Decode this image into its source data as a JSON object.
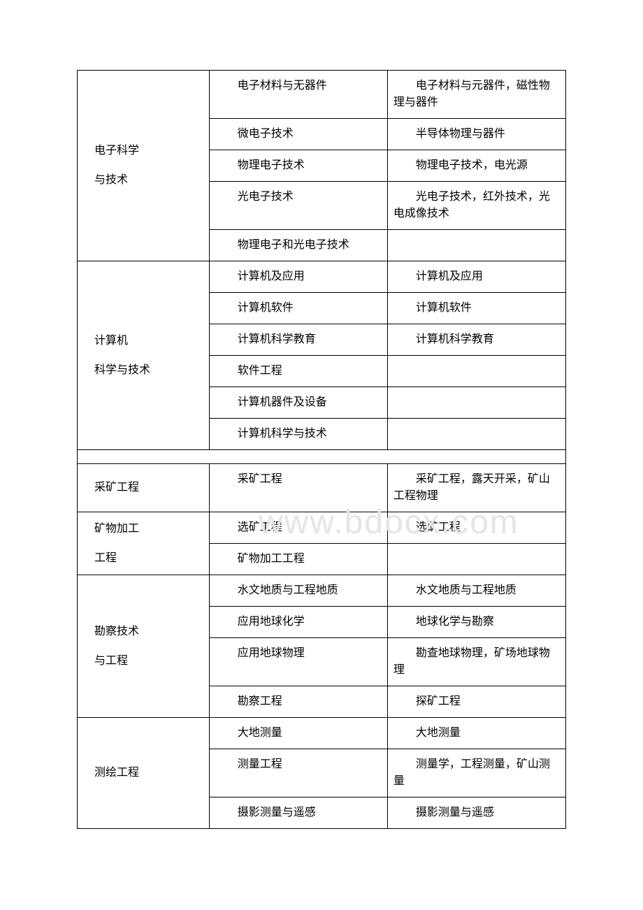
{
  "watermark": "www.bdocx.com",
  "table": {
    "border_color": "#000000",
    "background_color": "#ffffff",
    "text_color": "#000000",
    "font_size": 16,
    "watermark_color": "#e5e5e5",
    "column_widths": [
      "27%",
      "36.5%",
      "36.5%"
    ],
    "sections": [
      {
        "category_lines": [
          "电子科学",
          "与技术"
        ],
        "rows": [
          {
            "col2": "电子材料与无器件",
            "col3": "　　电子材料与元器件，磁性物理与器件"
          },
          {
            "col2": "微电子技术",
            "col3": "半导体物理与器件"
          },
          {
            "col2": "物理电子技术",
            "col3": "　　物理电子技术，电光源"
          },
          {
            "col2": "光电子技术",
            "col3": "　　光电子技术，红外技术，光电成像技术"
          },
          {
            "col2": "　　物理电子和光电子技术",
            "col3": ""
          }
        ]
      },
      {
        "category_lines": [
          "计算机",
          "科学与技术"
        ],
        "rows": [
          {
            "col2": "计算机及应用",
            "col3": "计算机及应用"
          },
          {
            "col2": "计算机软件",
            "col3": "计算机软件"
          },
          {
            "col2": "计算机科学教育",
            "col3": "计算机科学教育"
          },
          {
            "col2": "软件工程",
            "col3": ""
          },
          {
            "col2": "计算机器件及设备",
            "col3": ""
          },
          {
            "col2": "计算机科学与技术",
            "col3": ""
          }
        ]
      },
      {
        "spacer": true
      },
      {
        "category_lines": [
          "采矿工程"
        ],
        "rows": [
          {
            "col2": "采矿工程",
            "col3": "　　采矿工程，露天开采，矿山工程物理"
          }
        ]
      },
      {
        "category_lines": [
          "矿物加工",
          "工程"
        ],
        "rows": [
          {
            "col2": "选矿工程",
            "col3": "选矿工程"
          },
          {
            "col2": "矿物加工工程",
            "col3": ""
          }
        ]
      },
      {
        "category_lines": [
          "勘察技术",
          "与工程"
        ],
        "rows": [
          {
            "col2": "　　水文地质与工程地质",
            "col3": "　　水文地质与工程地质"
          },
          {
            "col2": "应用地球化学",
            "col3": "地球化学与勘察"
          },
          {
            "col2": "应用地球物理",
            "col3": "　　勘查地球物理，矿场地球物理"
          },
          {
            "col2": "勘察工程",
            "col3": "探矿工程"
          }
        ]
      },
      {
        "category_lines": [
          "测绘工程"
        ],
        "rows": [
          {
            "col2": "大地测量",
            "col3": "大地测量"
          },
          {
            "col2": "测量工程",
            "col3": "　　测量学，工程测量，矿山测量"
          },
          {
            "col2": "摄影测量与遥感",
            "col3": "摄影测量与遥感"
          }
        ]
      }
    ]
  }
}
